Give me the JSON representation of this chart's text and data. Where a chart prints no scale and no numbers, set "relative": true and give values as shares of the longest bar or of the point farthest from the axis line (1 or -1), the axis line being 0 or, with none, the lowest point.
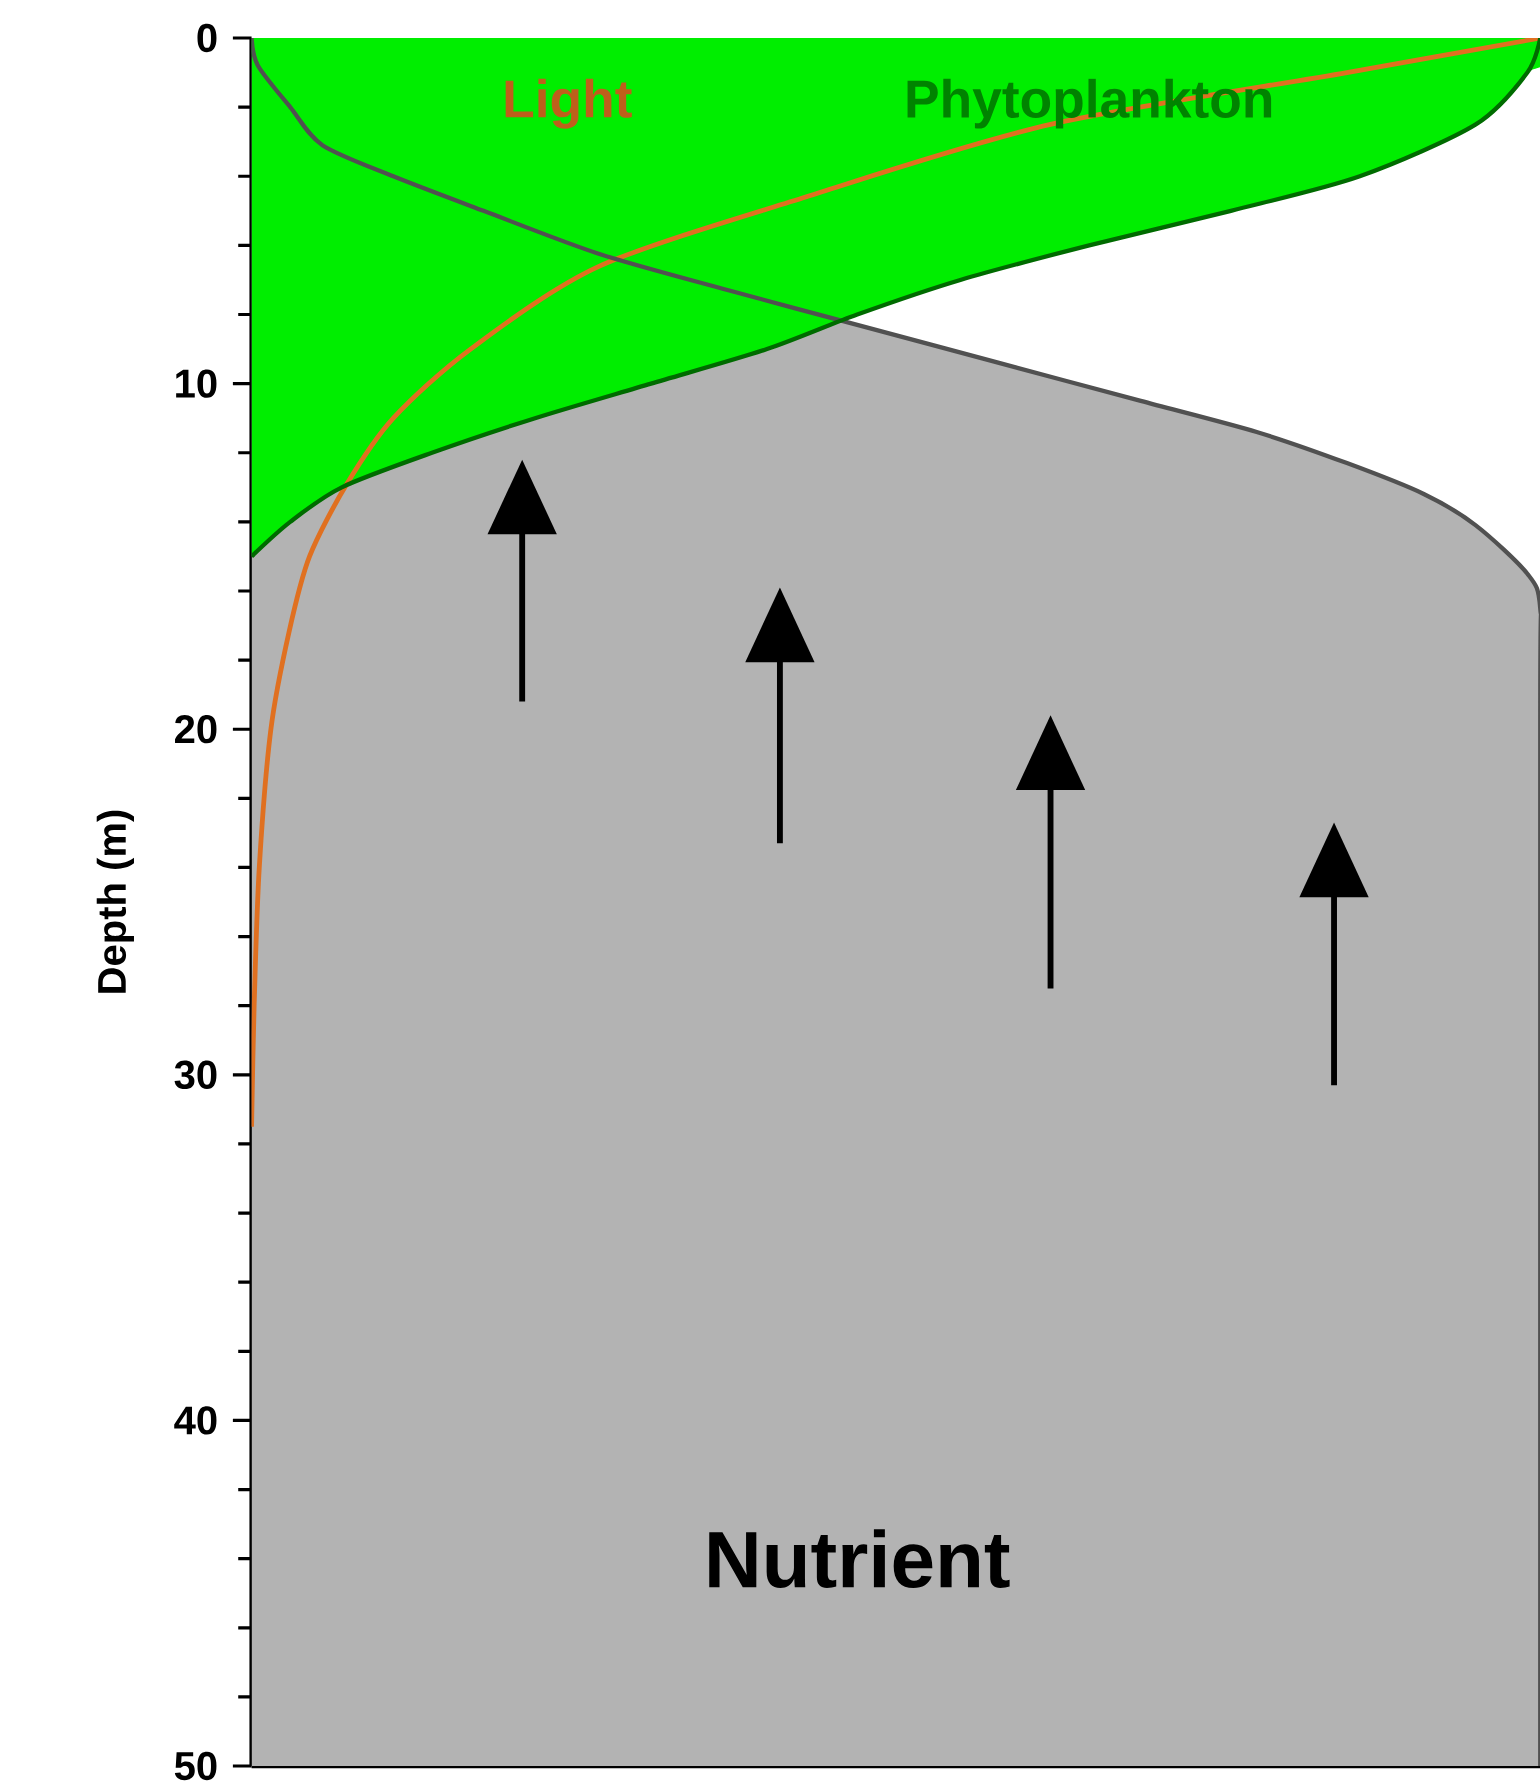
{
  "chart_data": {
    "type": "area",
    "relative": true,
    "orientation": "horizontal",
    "ylabel": "Depth (m)",
    "ylim": [
      50,
      0
    ],
    "yticks": [
      0,
      10,
      20,
      30,
      40,
      50
    ],
    "tick_labels": "y",
    "series": [
      {
        "name": "Nutrient",
        "color": "#b3b3b3",
        "x": [
          0,
          0.8,
          2,
          3.1,
          4,
          5,
          6.25,
          7.3,
          8.3,
          9.4,
          10.5,
          11.4,
          12.3,
          13.2,
          14.1,
          15.5,
          16.5,
          20,
          50
        ],
        "values": [
          0,
          0.005,
          0.03,
          0.055,
          0.11,
          0.18,
          0.27,
          0.37,
          0.47,
          0.58,
          0.69,
          0.78,
          0.85,
          0.91,
          0.95,
          0.99,
          1,
          1,
          1
        ]
      },
      {
        "name": "Phytoplankton",
        "color": "#00ee00",
        "x": [
          0,
          1,
          2.5,
          4,
          5,
          6,
          7,
          8,
          9,
          10,
          11,
          12,
          13,
          14,
          15
        ],
        "values": [
          1,
          0.99,
          0.95,
          0.86,
          0.76,
          0.65,
          0.55,
          0.47,
          0.4,
          0.31,
          0.22,
          0.14,
          0.07,
          0.03,
          0
        ]
      },
      {
        "name": "Light",
        "type": "line",
        "color": "#e07020",
        "x": [
          0,
          1,
          2.5,
          4.6,
          6.6,
          9,
          11,
          12.9,
          15,
          17.2,
          20,
          24,
          28,
          31.5
        ],
        "values": [
          1,
          0.85,
          0.62,
          0.43,
          0.27,
          0.17,
          0.11,
          0.074,
          0.045,
          0.029,
          0.015,
          0.006,
          0.002,
          0
        ]
      }
    ]
  }
}
